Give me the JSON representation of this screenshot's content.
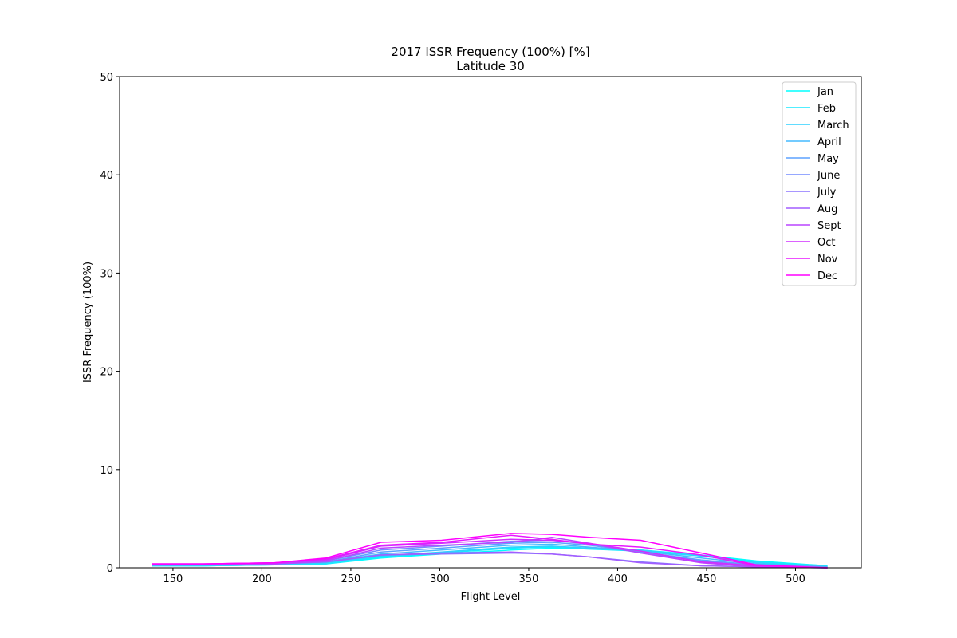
{
  "chart_data": {
    "type": "line",
    "title": "2017 ISSR Frequency (100%) [%]",
    "subtitle": "Latitude 30",
    "xlabel": "Flight Level",
    "ylabel": "ISSR Frequency (100%)",
    "xlim": [
      120,
      537
    ],
    "ylim": [
      0,
      50
    ],
    "xticks": [
      150,
      200,
      250,
      300,
      350,
      400,
      450,
      500
    ],
    "yticks": [
      0,
      10,
      20,
      30,
      40,
      50
    ],
    "grid": false,
    "legend_position": "top-right",
    "x": [
      138,
      167,
      207,
      236,
      267,
      301,
      340,
      363,
      384,
      413,
      447,
      478,
      518
    ],
    "series": [
      {
        "name": "Jan",
        "color": "#00ffff",
        "values": [
          0.2,
          0.2,
          0.3,
          0.4,
          1.0,
          1.4,
          1.8,
          2.0,
          2.0,
          1.8,
          1.3,
          0.7,
          0.2
        ]
      },
      {
        "name": "Feb",
        "color": "#17e8ff",
        "values": [
          0.2,
          0.2,
          0.3,
          0.4,
          1.1,
          1.5,
          2.0,
          2.1,
          1.9,
          1.7,
          1.2,
          0.6,
          0.2
        ]
      },
      {
        "name": "March",
        "color": "#2ed1ff",
        "values": [
          0.2,
          0.2,
          0.3,
          0.5,
          1.2,
          1.6,
          2.1,
          2.2,
          2.0,
          1.8,
          1.2,
          0.5,
          0.1
        ]
      },
      {
        "name": "April",
        "color": "#45baff",
        "values": [
          0.2,
          0.3,
          0.4,
          0.6,
          1.4,
          1.8,
          2.3,
          2.4,
          2.1,
          1.7,
          1.0,
          0.4,
          0.1
        ]
      },
      {
        "name": "May",
        "color": "#5da2ff",
        "values": [
          0.3,
          0.3,
          0.4,
          0.6,
          1.6,
          2.0,
          2.5,
          2.6,
          2.3,
          1.6,
          0.8,
          0.3,
          0.1
        ]
      },
      {
        "name": "June",
        "color": "#748bff",
        "values": [
          0.3,
          0.3,
          0.4,
          0.7,
          1.8,
          2.2,
          2.7,
          2.8,
          2.4,
          1.5,
          0.7,
          0.2,
          0.0
        ]
      },
      {
        "name": "July",
        "color": "#8b74ff",
        "values": [
          0.3,
          0.3,
          0.4,
          0.6,
          1.3,
          1.4,
          1.5,
          1.4,
          1.1,
          0.6,
          0.2,
          0.1,
          0.0
        ]
      },
      {
        "name": "Aug",
        "color": "#a25dff",
        "values": [
          0.3,
          0.3,
          0.4,
          0.6,
          1.3,
          1.5,
          1.6,
          1.4,
          1.1,
          0.5,
          0.2,
          0.1,
          0.0
        ]
      },
      {
        "name": "Sept",
        "color": "#ba45ff",
        "values": [
          0.3,
          0.3,
          0.4,
          0.7,
          2.0,
          2.3,
          2.6,
          3.1,
          2.5,
          1.5,
          0.5,
          0.1,
          0.0
        ]
      },
      {
        "name": "Oct",
        "color": "#d12eff",
        "values": [
          0.4,
          0.4,
          0.5,
          0.8,
          2.2,
          2.5,
          2.9,
          2.8,
          2.5,
          1.7,
          0.6,
          0.2,
          0.0
        ]
      },
      {
        "name": "Nov",
        "color": "#e817ff",
        "values": [
          0.4,
          0.4,
          0.5,
          0.9,
          2.3,
          2.6,
          3.3,
          2.9,
          2.4,
          2.1,
          1.3,
          0.2,
          0.0
        ]
      },
      {
        "name": "Dec",
        "color": "#ff00ff",
        "values": [
          0.4,
          0.4,
          0.5,
          1.0,
          2.6,
          2.8,
          3.5,
          3.4,
          3.1,
          2.8,
          1.5,
          0.3,
          0.0
        ]
      }
    ]
  }
}
